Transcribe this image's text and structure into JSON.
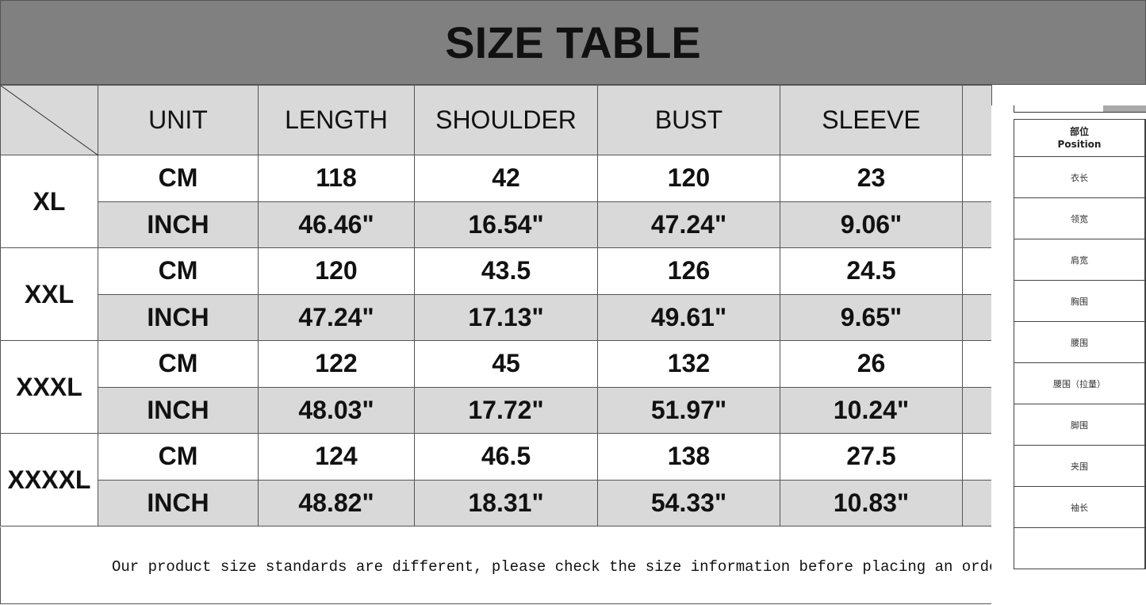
{
  "title": "SIZE TABLE",
  "headers": [
    "UNIT",
    "LENGTH",
    "SHOULDER",
    "BUST",
    "SLEEVE"
  ],
  "sizes": [
    {
      "size": "XL",
      "cm": {
        "unit": "CM",
        "values": [
          "118",
          "42",
          "120",
          "23"
        ]
      },
      "inch": {
        "unit": "INCH",
        "values": [
          "46.46\"",
          "16.54\"",
          "47.24\"",
          "9.06\""
        ]
      }
    },
    {
      "size": "XXL",
      "cm": {
        "unit": "CM",
        "values": [
          "120",
          "43.5",
          "126",
          "24.5"
        ]
      },
      "inch": {
        "unit": "INCH",
        "values": [
          "47.24\"",
          "17.13\"",
          "49.61\"",
          "9.65\""
        ]
      }
    },
    {
      "size": "XXXL",
      "cm": {
        "unit": "CM",
        "values": [
          "122",
          "45",
          "132",
          "26"
        ]
      },
      "inch": {
        "unit": "INCH",
        "values": [
          "48.03\"",
          "17.72\"",
          "51.97\"",
          "10.24\""
        ]
      }
    },
    {
      "size": "XXXXL",
      "cm": {
        "unit": "CM",
        "values": [
          "124",
          "46.5",
          "138",
          "27.5"
        ]
      },
      "inch": {
        "unit": "INCH",
        "values": [
          "48.82\"",
          "18.31\"",
          "54.33\"",
          "10.83\""
        ]
      }
    }
  ],
  "note": "Our product size standards are different, please check the size information before placing an order",
  "overlay": {
    "header_cn": "部位",
    "header_en": "Position",
    "rows": [
      "衣长",
      "领宽",
      "肩宽",
      "胸围",
      "腰围",
      "腰围（拉量）",
      "脚围",
      "夹围",
      "袖长",
      ""
    ]
  },
  "colors": {
    "title_bg": "#808080",
    "cell_gray": "#d9d9d9"
  }
}
